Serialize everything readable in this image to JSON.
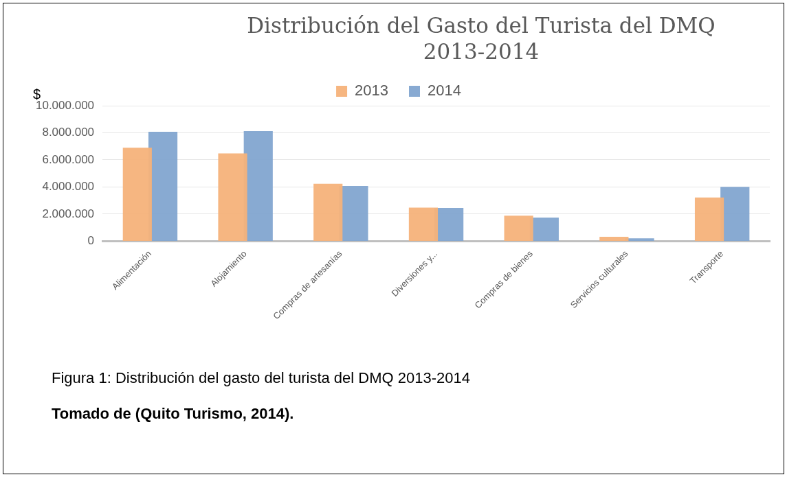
{
  "chart_data": {
    "type": "bar",
    "title": "Distribución del Gasto del Turista del DMQ 2013-2014",
    "ylabel": "$",
    "categories": [
      "Alimentación",
      "Alojamiento",
      "Compras de artesanías",
      "Diversiones y...",
      "Compras de bienes",
      "Servicios culturales",
      "Transporte"
    ],
    "series": [
      {
        "name": "2013",
        "color": "#f6b27a",
        "values": [
          6900000,
          6480000,
          4240000,
          2480000,
          1880000,
          330000,
          3220000
        ]
      },
      {
        "name": "2014",
        "color": "#82a5d0",
        "values": [
          8080000,
          8120000,
          4070000,
          2450000,
          1740000,
          210000,
          4010000
        ]
      }
    ],
    "ylim": [
      0,
      10000000
    ],
    "yticks": [
      {
        "value": 0,
        "label": "0"
      },
      {
        "value": 2000000,
        "label": "2.000.000"
      },
      {
        "value": 4000000,
        "label": "4.000.000"
      },
      {
        "value": 6000000,
        "label": "6.000.000"
      },
      {
        "value": 8000000,
        "label": "8.000.000"
      },
      {
        "value": 10000000,
        "label": "10.000.000"
      }
    ],
    "grid": "y",
    "legend": "top",
    "annotations": [
      "Figura 1: Distribución del gasto del turista del DMQ 2013-2014",
      "Tomado de (Quito Turismo, 2014)."
    ]
  }
}
